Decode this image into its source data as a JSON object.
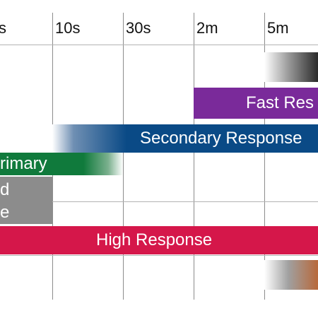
{
  "timeline": {
    "ticks": [
      "s",
      "10s",
      "30s",
      "2m",
      "5m"
    ]
  },
  "bars": {
    "top_gray": {
      "label": "",
      "colors": [
        "#ffffff",
        "#9a9a9a",
        "#2a2a2a"
      ]
    },
    "fast": {
      "label": "Fast Res",
      "color": "#7a2a9a"
    },
    "secondary": {
      "label": "Secondary Response",
      "color": "#0a4a86"
    },
    "primary": {
      "label": "rimary",
      "color": "#107a3c"
    },
    "gray_block": {
      "label_1": "d",
      "label_2": "e",
      "color": "#8c8c8c"
    },
    "high": {
      "label": "High Response",
      "color": "#d5174a"
    },
    "bottom_copper": {
      "label": "",
      "colors": [
        "#ffffff",
        "#a0a0a0",
        "#b8683a"
      ]
    }
  }
}
